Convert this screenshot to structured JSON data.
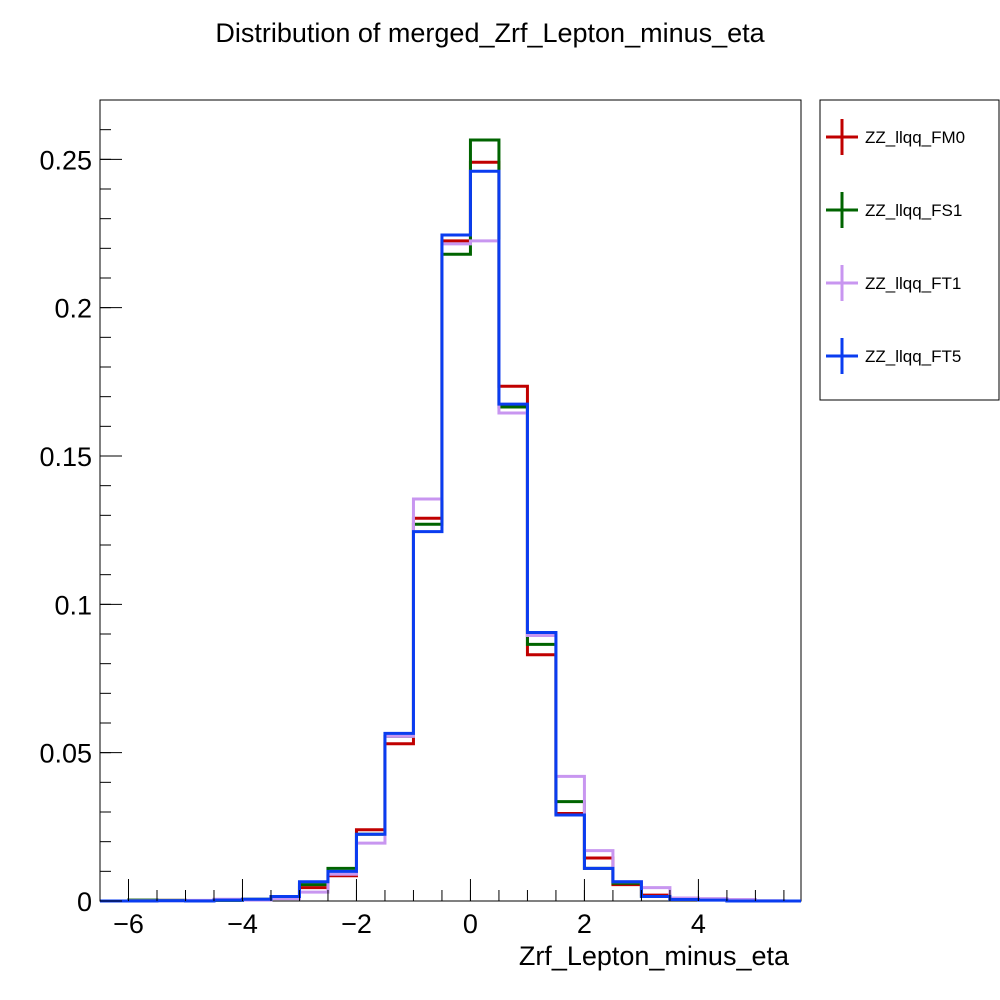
{
  "chart_data": {
    "type": "line",
    "title": "Distribution of merged_Zrf_Lepton_minus_eta",
    "xlabel": "Zrf_Lepton_minus_eta",
    "ylabel": "",
    "xlim": [
      -6.5,
      5.8
    ],
    "ylim": [
      0,
      0.27
    ],
    "bin_edges": [
      -6.5,
      -6.0,
      -5.5,
      -5.0,
      -4.5,
      -4.0,
      -3.5,
      -3.0,
      -2.5,
      -2.0,
      -1.5,
      -1.0,
      -0.5,
      0.0,
      0.5,
      1.0,
      1.5,
      2.0,
      2.5,
      3.0,
      3.5,
      4.0,
      4.5,
      5.0,
      5.5,
      5.8
    ],
    "x_ticks": [
      -6,
      -4,
      -2,
      0,
      2,
      4
    ],
    "x_tick_labels": [
      "−6",
      "−4",
      "−2",
      "0",
      "2",
      "4"
    ],
    "y_ticks": [
      0,
      0.05,
      0.1,
      0.15,
      0.2,
      0.25
    ],
    "y_tick_labels": [
      "0",
      "0.05",
      "0.1",
      "0.15",
      "0.2",
      "0.25"
    ],
    "grid": false,
    "legend_position": "top-right, outside plot",
    "series": [
      {
        "name": "ZZ_llqq_FM0",
        "color": "#c00000",
        "values": [
          0,
          0.0002,
          0.0002,
          0,
          0.0003,
          0.0005,
          0.0012,
          0.0045,
          0.0085,
          0.024,
          0.053,
          0.129,
          0.2225,
          0.249,
          0.1735,
          0.083,
          0.0295,
          0.0145,
          0.0055,
          0.002,
          0.0008,
          0.0005,
          0.0002,
          0,
          0
        ]
      },
      {
        "name": "ZZ_llqq_FS1",
        "color": "#006400",
        "values": [
          0,
          0.0003,
          0.0002,
          0.0001,
          0.0002,
          0.0006,
          0.001,
          0.0055,
          0.011,
          0.0225,
          0.0555,
          0.127,
          0.218,
          0.2565,
          0.1665,
          0.0865,
          0.0335,
          0.011,
          0.006,
          0.0015,
          0.0005,
          0.0005,
          0.0002,
          0,
          0
        ]
      },
      {
        "name": "ZZ_llqq_FT1",
        "color": "#c896f0",
        "values": [
          0,
          0.0001,
          0.0001,
          0.0002,
          0.0006,
          0.0003,
          0.0008,
          0.003,
          0.009,
          0.0195,
          0.0555,
          0.1355,
          0.2215,
          0.2225,
          0.1645,
          0.0895,
          0.042,
          0.017,
          0.0065,
          0.0045,
          0.001,
          0.0008,
          0.0005,
          0.0001,
          0
        ]
      },
      {
        "name": "ZZ_llqq_FT5",
        "color": "#0a3cf0",
        "values": [
          0,
          0,
          0.0001,
          0,
          0.0003,
          0.0006,
          0.0015,
          0.0065,
          0.01,
          0.0225,
          0.0565,
          0.1245,
          0.2245,
          0.246,
          0.1675,
          0.0905,
          0.029,
          0.011,
          0.0065,
          0.0015,
          0.0005,
          0.0003,
          0,
          0,
          0
        ]
      }
    ]
  }
}
